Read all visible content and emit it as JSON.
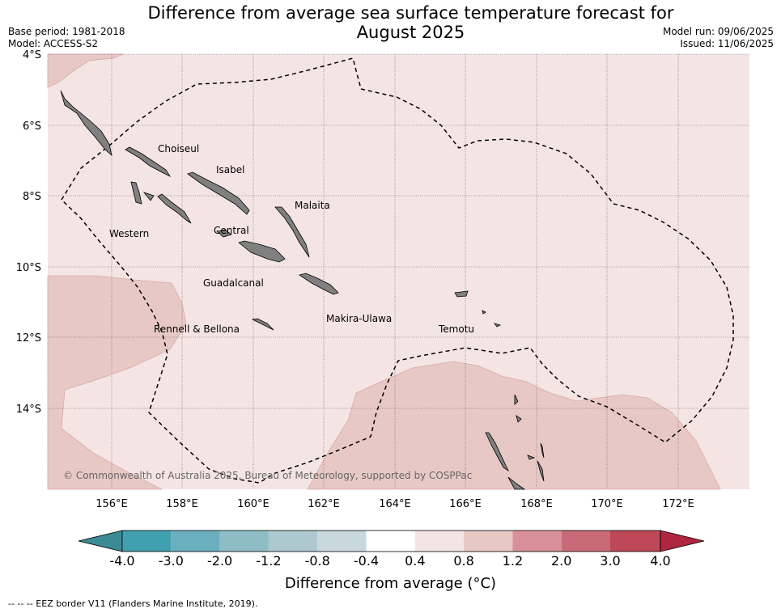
{
  "header": {
    "title_line1": "Difference from average sea surface temperature forecast for",
    "title_line2": "August 2025",
    "base_period": "Base period: 1981-2018",
    "model": "Model: ACCESS-S2",
    "model_run": "Model run: 09/06/2025",
    "issued": "Issued: 11/06/2025"
  },
  "map": {
    "lon_range": [
      154.2,
      174.0
    ],
    "lat_range": [
      -16.0,
      -3.9
    ],
    "lat_ticks": [
      "4°S",
      "6°S",
      "8°S",
      "10°S",
      "12°S",
      "14°S"
    ],
    "lon_ticks": [
      "156°E",
      "158°E",
      "160°E",
      "162°E",
      "164°E",
      "166°E",
      "168°E",
      "170°E",
      "172°E"
    ],
    "provinces": [
      "Choiseul",
      "Isabel",
      "Malaita",
      "Western",
      "Central",
      "Guadalcanal",
      "Rennell & Bellona",
      "Makira-Ulawa",
      "Temotu"
    ],
    "copyright": "© Commonwealth of Australia 2025, Bureau of Meteorology, supported by COSPPac",
    "colors": {
      "background_anomaly": "#f4e5e4",
      "warmer_anomaly": "#e8c8c5",
      "land": "#808080",
      "eez": "#000000"
    }
  },
  "colorbar": {
    "labels": [
      "-4.0",
      "-3.0",
      "-2.0",
      "-1.2",
      "-0.8",
      "-0.4",
      "0.4",
      "0.8",
      "1.2",
      "2.0",
      "3.0",
      "4.0"
    ],
    "colors": [
      "#41a0b0",
      "#6aafbd",
      "#8ebdc6",
      "#adc9cd",
      "#c9d8dc",
      "#ffffff",
      "#f4e5e4",
      "#e8c8c5",
      "#d99098",
      "#c96a78",
      "#be4858"
    ],
    "under_color": "#3b8a94",
    "over_color": "#b02540",
    "title": "Difference from average (°C)"
  },
  "footnote": "--  --  -- EEZ border V11 (Flanders Marine Institute, 2019)."
}
